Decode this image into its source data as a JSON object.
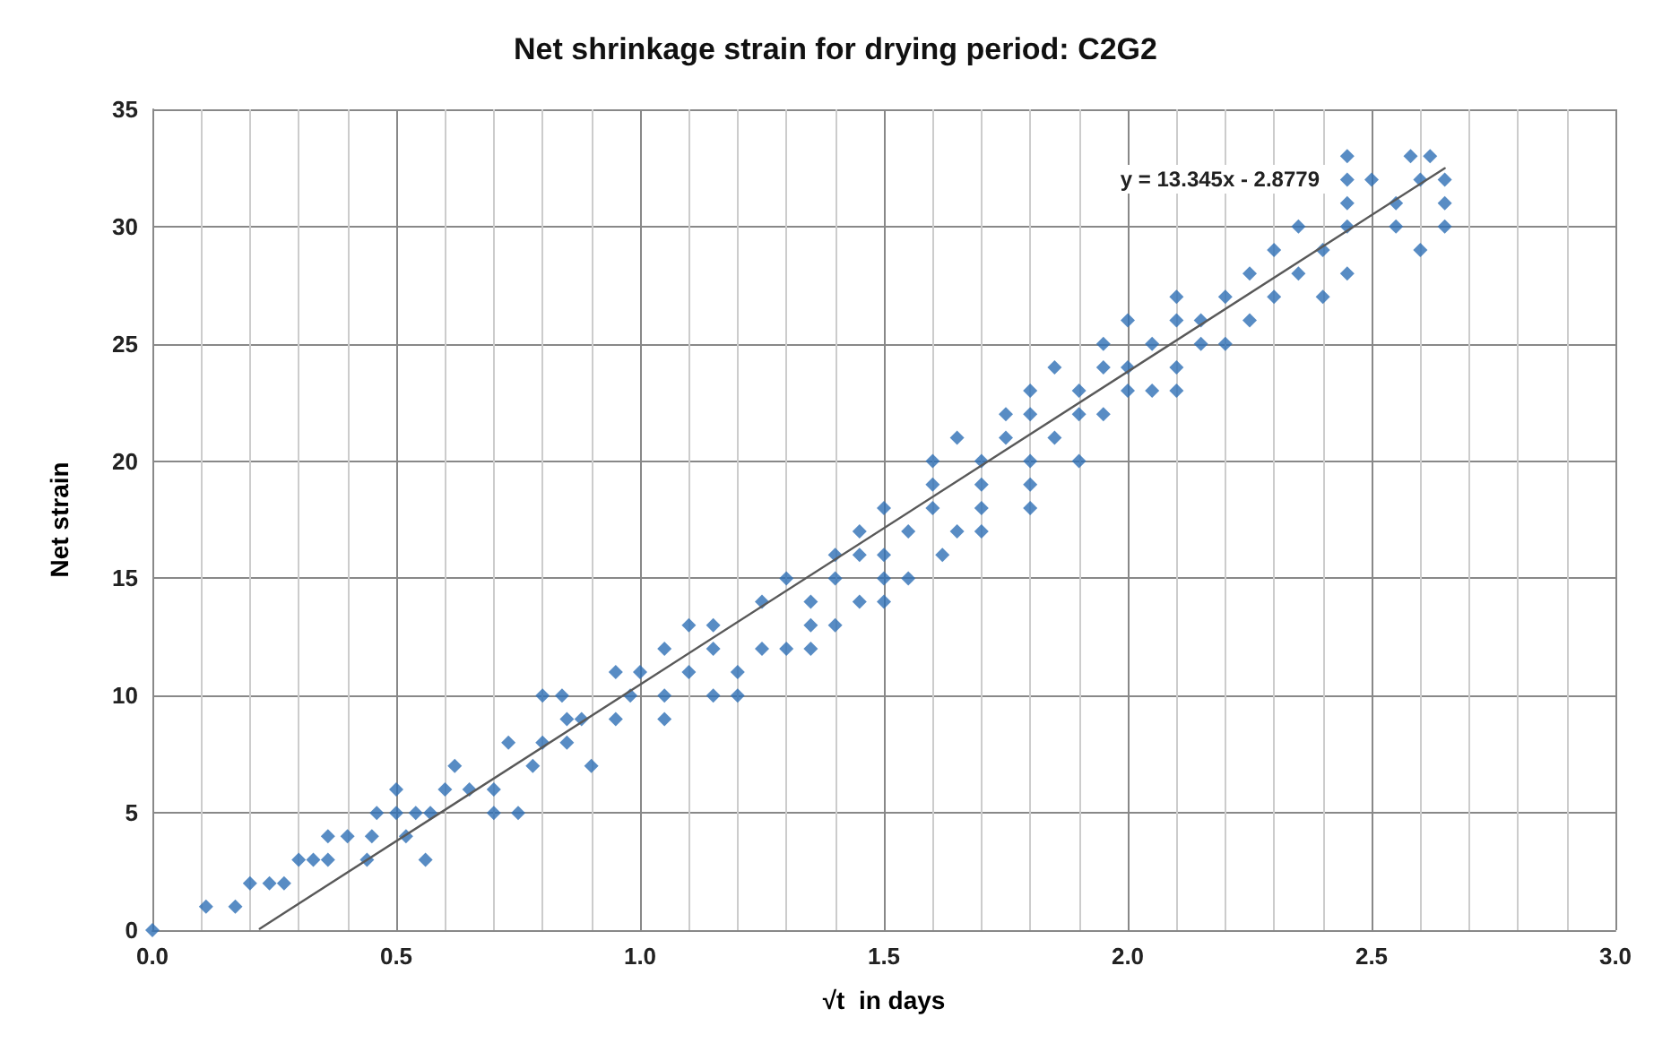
{
  "chart_data": {
    "type": "scatter",
    "title": "Net shrinkage strain for drying period: C2G2",
    "xlabel": "√t  in days",
    "ylabel": "Net strain",
    "annotations": [
      "y = 13.345x - 2.8779"
    ],
    "xlim": [
      0,
      3
    ],
    "xticks": [
      {
        "value": 0,
        "label": "0.0"
      },
      0.5,
      {
        "value": 1,
        "label": "1.0"
      },
      1.5,
      {
        "value": 2,
        "label": "2.0"
      },
      2.5,
      {
        "value": 3,
        "label": "3.0"
      }
    ],
    "ylim": [
      0,
      35
    ],
    "yticks": [
      0,
      5,
      10,
      15,
      20,
      25,
      30,
      35
    ],
    "grid": true,
    "marker": "diamond",
    "series": [
      {
        "color": "#2e6fb5",
        "x": [
          0,
          0.11,
          0.17,
          0.2,
          0.24,
          0.27,
          0.3,
          0.33,
          0.36,
          0.44,
          0.56,
          0.36,
          0.4,
          0.45,
          0.52,
          0.46,
          0.5,
          0.54,
          0.57,
          0.7,
          0.75,
          0.5,
          0.6,
          0.65,
          0.7,
          0.62,
          0.78,
          0.9,
          0.73,
          0.8,
          0.85,
          0.85,
          0.88,
          0.95,
          1.05,
          0.8,
          0.84,
          0.98,
          1.05,
          1.15,
          1.2,
          0.95,
          1.0,
          1.1,
          1.2,
          1.05,
          1.15,
          1.25,
          1.3,
          1.35,
          1.1,
          1.15,
          1.35,
          1.4,
          1.25,
          1.35,
          1.45,
          1.5,
          1.3,
          1.4,
          1.5,
          1.55,
          1.4,
          1.45,
          1.5,
          1.62,
          1.45,
          1.55,
          1.65,
          1.7,
          1.5,
          1.6,
          1.7,
          1.8,
          1.6,
          1.7,
          1.8,
          1.6,
          1.7,
          1.8,
          1.9,
          1.65,
          1.75,
          1.85,
          1.75,
          1.8,
          1.9,
          1.95,
          1.8,
          1.9,
          2.0,
          2.05,
          2.1,
          1.85,
          1.95,
          2.0,
          2.1,
          1.95,
          2.05,
          2.15,
          2.2,
          2.0,
          2.1,
          2.15,
          2.25,
          2.1,
          2.2,
          2.3,
          2.4,
          2.25,
          2.35,
          2.45,
          2.3,
          2.4,
          2.6,
          2.35,
          2.45,
          2.55,
          2.65,
          2.45,
          2.55,
          2.65,
          2.45,
          2.5,
          2.6,
          2.65,
          2.45,
          2.58,
          2.62
        ],
        "values": [
          0,
          1,
          1,
          2,
          2,
          2,
          3,
          3,
          3,
          3,
          3,
          4,
          4,
          4,
          4,
          5,
          5,
          5,
          5,
          5,
          5,
          6,
          6,
          6,
          6,
          7,
          7,
          7,
          8,
          8,
          8,
          9,
          9,
          9,
          9,
          10,
          10,
          10,
          10,
          10,
          10,
          11,
          11,
          11,
          11,
          12,
          12,
          12,
          12,
          12,
          13,
          13,
          13,
          13,
          14,
          14,
          14,
          14,
          15,
          15,
          15,
          15,
          16,
          16,
          16,
          16,
          17,
          17,
          17,
          17,
          18,
          18,
          18,
          18,
          19,
          19,
          19,
          20,
          20,
          20,
          20,
          21,
          21,
          21,
          22,
          22,
          22,
          22,
          23,
          23,
          23,
          23,
          23,
          24,
          24,
          24,
          24,
          25,
          25,
          25,
          25,
          26,
          26,
          26,
          26,
          27,
          27,
          27,
          27,
          28,
          28,
          28,
          29,
          29,
          29,
          30,
          30,
          30,
          30,
          31,
          31,
          31,
          32,
          32,
          32,
          32,
          33,
          33,
          33
        ]
      },
      {
        "type": "line",
        "color": "#595959",
        "marker": "none",
        "x": [
          0.22,
          2.65
        ],
        "values": [
          0.06,
          32.49
        ]
      }
    ]
  }
}
